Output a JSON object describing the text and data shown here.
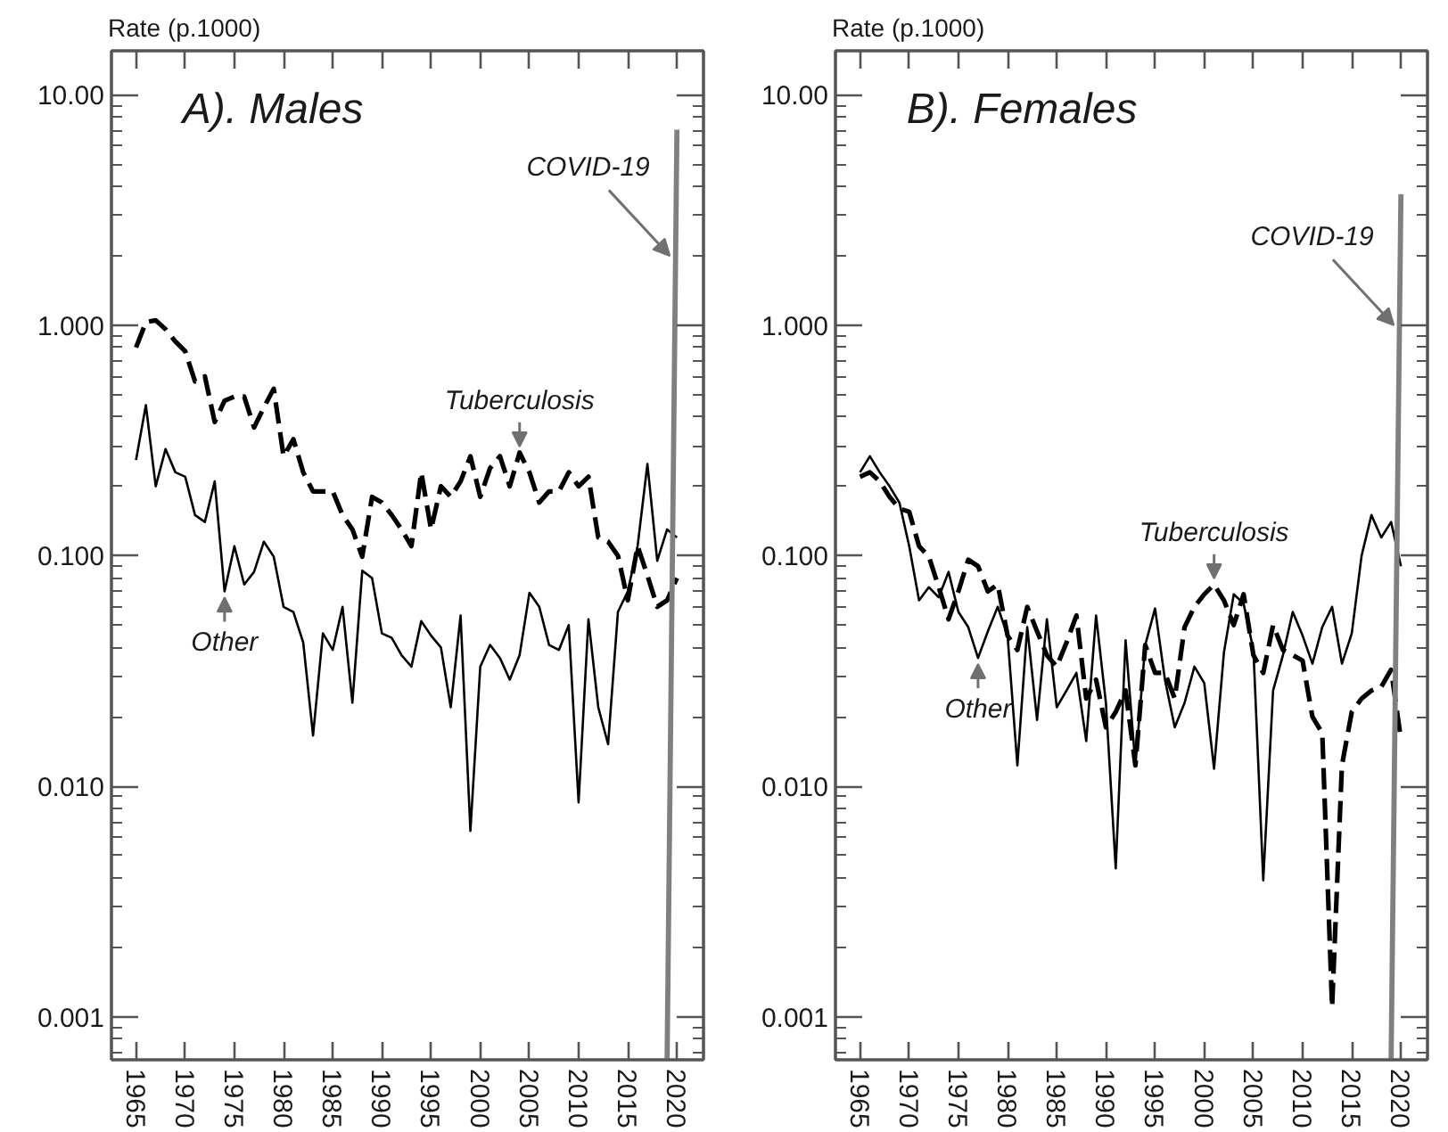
{
  "chart_data": [
    {
      "type": "line",
      "title": "A). Males",
      "ylabel": "Rate (p.1000)",
      "log": true,
      "x": [
        1965,
        1966,
        1967,
        1968,
        1969,
        1970,
        1971,
        1972,
        1973,
        1974,
        1975,
        1976,
        1977,
        1978,
        1979,
        1980,
        1981,
        1982,
        1983,
        1984,
        1985,
        1986,
        1987,
        1988,
        1989,
        1990,
        1991,
        1992,
        1993,
        1994,
        1995,
        1996,
        1997,
        1998,
        1999,
        2000,
        2001,
        2002,
        2003,
        2004,
        2005,
        2006,
        2007,
        2008,
        2009,
        2010,
        2011,
        2012,
        2013,
        2014,
        2015,
        2016,
        2017,
        2018,
        2019,
        2020
      ],
      "xlim": [
        1962.5,
        2022.7
      ],
      "ylim": [
        0.00065,
        15.5
      ],
      "xticks": [
        1965,
        1970,
        1975,
        1980,
        1985,
        1990,
        1995,
        2000,
        2005,
        2010,
        2015,
        2020
      ],
      "yticks": [
        0.001,
        {
          "value": 0.01,
          "label": "0.010"
        },
        {
          "value": 0.1,
          "label": "0.100"
        },
        {
          "value": 1,
          "label": "1.000"
        },
        {
          "value": 10,
          "label": "10.00"
        }
      ],
      "series": [
        {
          "color": "#000000",
          "line_style": "dashed",
          "values": [
            0.8,
            1.03,
            1.05,
            0.96,
            0.85,
            0.77,
            0.57,
            0.6,
            0.38,
            0.47,
            0.49,
            0.49,
            0.36,
            0.44,
            0.53,
            0.27,
            0.32,
            0.23,
            0.19,
            0.19,
            0.19,
            0.15,
            0.13,
            0.099,
            0.18,
            0.17,
            0.15,
            0.13,
            0.11,
            0.23,
            0.13,
            0.2,
            0.18,
            0.21,
            0.27,
            0.18,
            0.24,
            0.27,
            0.2,
            0.28,
            0.23,
            0.17,
            0.19,
            0.19,
            0.23,
            0.2,
            0.22,
            0.12,
            0.115,
            0.1,
            0.064,
            0.11,
            0.082,
            0.06,
            0.064,
            0.08
          ]
        },
        {
          "color": "#000000",
          "line_style": "solid",
          "values": [
            0.26,
            0.45,
            0.2,
            0.29,
            0.23,
            0.22,
            0.15,
            0.14,
            0.21,
            0.07,
            0.11,
            0.075,
            0.085,
            0.115,
            0.099,
            0.06,
            0.057,
            0.042,
            0.0166,
            0.046,
            0.039,
            0.06,
            0.023,
            0.086,
            0.08,
            0.046,
            0.044,
            0.037,
            0.033,
            0.052,
            0.045,
            0.04,
            0.022,
            0.055,
            0.0064,
            0.033,
            0.041,
            0.036,
            0.029,
            0.037,
            0.069,
            0.06,
            0.041,
            0.039,
            0.05,
            0.0085,
            0.053,
            0.022,
            0.0152,
            0.057,
            0.07,
            0.11,
            0.25,
            0.095,
            0.13,
            0.12
          ]
        },
        {
          "color": "#808080",
          "line_style": "solid",
          "values": [
            null,
            null,
            null,
            null,
            null,
            null,
            null,
            null,
            null,
            null,
            null,
            null,
            null,
            null,
            null,
            null,
            null,
            null,
            null,
            null,
            null,
            null,
            null,
            null,
            null,
            null,
            null,
            null,
            null,
            null,
            null,
            null,
            null,
            null,
            null,
            null,
            null,
            null,
            null,
            null,
            null,
            null,
            null,
            null,
            null,
            null,
            null,
            null,
            null,
            null,
            null,
            null,
            null,
            null,
            0.00065,
            7.05
          ]
        }
      ],
      "annotations": [
        {
          "text": "COVID-19",
          "x": 2020,
          "y": 2.0
        },
        {
          "text": "Tuberculosis",
          "x": 2004,
          "y": 0.28
        },
        {
          "text": "Other",
          "x": 1974,
          "y": 0.07
        }
      ]
    },
    {
      "type": "line",
      "title": "B). Females",
      "ylabel": "Rate (p.1000)",
      "log": true,
      "x": [
        1965,
        1966,
        1967,
        1968,
        1969,
        1970,
        1971,
        1972,
        1973,
        1974,
        1975,
        1976,
        1977,
        1978,
        1979,
        1980,
        1981,
        1982,
        1983,
        1984,
        1985,
        1986,
        1987,
        1988,
        1989,
        1990,
        1991,
        1992,
        1993,
        1994,
        1995,
        1996,
        1997,
        1998,
        1999,
        2000,
        2001,
        2002,
        2003,
        2004,
        2005,
        2006,
        2007,
        2008,
        2009,
        2010,
        2011,
        2012,
        2013,
        2014,
        2015,
        2016,
        2017,
        2018,
        2019,
        2020
      ],
      "xlim": [
        1962.5,
        2022.7
      ],
      "ylim": [
        0.00065,
        15.5
      ],
      "xticks": [
        1965,
        1970,
        1975,
        1980,
        1985,
        1990,
        1995,
        2000,
        2005,
        2010,
        2015,
        2020
      ],
      "yticks": [
        0.001,
        {
          "value": 0.01,
          "label": "0.010"
        },
        {
          "value": 0.1,
          "label": "0.100"
        },
        {
          "value": 1,
          "label": "1.000"
        },
        {
          "value": 10,
          "label": "10.00"
        }
      ],
      "series": [
        {
          "color": "#000000",
          "line_style": "dashed",
          "values": [
            0.22,
            0.23,
            0.21,
            0.18,
            0.16,
            0.155,
            0.11,
            0.099,
            0.073,
            0.053,
            0.07,
            0.096,
            0.09,
            0.07,
            0.075,
            0.045,
            0.039,
            0.06,
            0.047,
            0.037,
            0.033,
            0.042,
            0.055,
            0.024,
            0.029,
            0.018,
            0.021,
            0.026,
            0.0123,
            0.041,
            0.031,
            0.031,
            0.024,
            0.049,
            0.06,
            0.068,
            0.075,
            0.064,
            0.05,
            0.068,
            0.037,
            0.031,
            0.05,
            0.039,
            0.037,
            0.035,
            0.02,
            0.017,
            0.0011,
            0.0123,
            0.021,
            0.024,
            0.026,
            0.027,
            0.032,
            0.016
          ]
        },
        {
          "color": "#000000",
          "line_style": "solid",
          "values": [
            0.23,
            0.27,
            0.23,
            0.2,
            0.17,
            0.11,
            0.064,
            0.073,
            0.066,
            0.085,
            0.057,
            0.049,
            0.036,
            0.047,
            0.06,
            0.045,
            0.0123,
            0.049,
            0.0194,
            0.053,
            0.022,
            0.026,
            0.031,
            0.0157,
            0.055,
            0.023,
            0.0044,
            0.043,
            0.0123,
            0.041,
            0.059,
            0.029,
            0.018,
            0.023,
            0.033,
            0.028,
            0.0119,
            0.038,
            0.068,
            0.062,
            0.039,
            0.0039,
            0.026,
            0.037,
            0.057,
            0.045,
            0.034,
            0.049,
            0.06,
            0.034,
            0.046,
            0.1,
            0.15,
            0.12,
            0.14,
            0.09
          ]
        },
        {
          "color": "#808080",
          "line_style": "solid",
          "values": [
            null,
            null,
            null,
            null,
            null,
            null,
            null,
            null,
            null,
            null,
            null,
            null,
            null,
            null,
            null,
            null,
            null,
            null,
            null,
            null,
            null,
            null,
            null,
            null,
            null,
            null,
            null,
            null,
            null,
            null,
            null,
            null,
            null,
            null,
            null,
            null,
            null,
            null,
            null,
            null,
            null,
            null,
            null,
            null,
            null,
            null,
            null,
            null,
            null,
            null,
            null,
            null,
            null,
            null,
            0.00065,
            3.7
          ]
        }
      ],
      "annotations": [
        {
          "text": "COVID-19",
          "x": 2020,
          "y": 1.0
        },
        {
          "text": "Tuberculosis",
          "x": 2001,
          "y": 0.075
        },
        {
          "text": "Other",
          "x": 1977,
          "y": 0.036
        }
      ]
    }
  ]
}
